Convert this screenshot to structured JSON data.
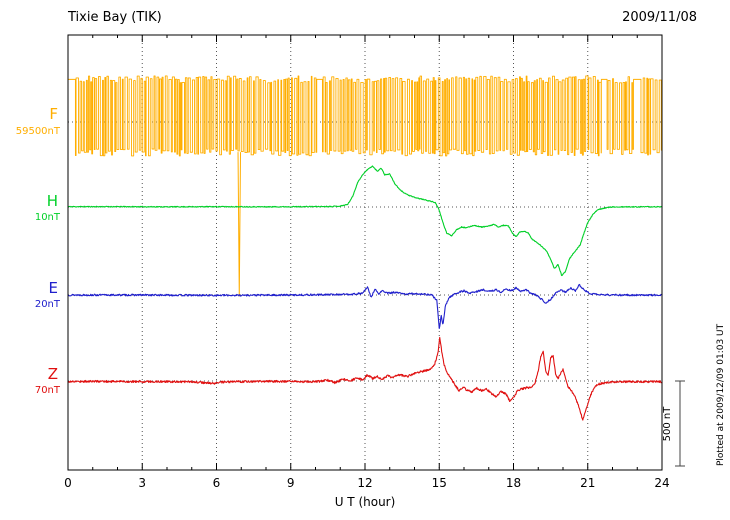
{
  "header": {
    "station": "Tixie Bay (TIK)",
    "date": "2009/11/08"
  },
  "axis": {
    "xlabel": "U T (hour)",
    "xrange": [
      0,
      24
    ],
    "xticks": [
      0,
      3,
      6,
      9,
      12,
      15,
      18,
      21,
      24
    ],
    "minor_step_hours": 1,
    "grid": "dotted-vertical-at-major-ticks-and-dotted-baseline-per-channel"
  },
  "scalebar": {
    "label": "500 nT",
    "nT": 500
  },
  "footer": {
    "plotted_at": "Plotted at 2009/12/09 01:03 UT"
  },
  "channels": [
    {
      "label": "F",
      "baseline_label": "59500nT",
      "color": "#ffae00"
    },
    {
      "label": "H",
      "baseline_label": "10nT",
      "color": "#00d028"
    },
    {
      "label": "E",
      "baseline_label": "20nT",
      "color": "#2020cc"
    },
    {
      "label": "Z",
      "baseline_label": "70nT",
      "color": "#e01010"
    }
  ],
  "chart_data": {
    "type": "line",
    "title": "Tixie Bay (TIK) magnetogram",
    "subtitle": "2009/11/08",
    "xlabel": "U T (hour)",
    "x_range_hours": [
      0,
      24
    ],
    "scale_bar_nT": 500,
    "legend_position": "left-channel-labels",
    "series": [
      {
        "name": "F",
        "baseline_label": "59500nT",
        "type": "square_wave",
        "high_nT": 245,
        "low_nT": -175,
        "jitter_nT": 20,
        "dwell_hours_min": 0.025,
        "dwell_hours_max": 0.1,
        "flat_segments": [
          [
            0,
            0.3
          ],
          [
            10.05,
            10.28
          ],
          [
            21.55,
            21.78
          ],
          [
            22.85,
            23.15
          ]
        ],
        "spike": {
          "hour": 6.92,
          "nT": -1000,
          "width_hours": 0.05
        },
        "seed": 7
      },
      {
        "name": "H",
        "baseline_label": "10nT",
        "type": "keypoints",
        "noise_nT": 2.5,
        "seed": 11,
        "points": [
          [
            0,
            2
          ],
          [
            2,
            2
          ],
          [
            4,
            1
          ],
          [
            6,
            2
          ],
          [
            8,
            1
          ],
          [
            9.5,
            2
          ],
          [
            10.5,
            3
          ],
          [
            11,
            5
          ],
          [
            11.3,
            15
          ],
          [
            11.5,
            60
          ],
          [
            11.7,
            140
          ],
          [
            11.9,
            185
          ],
          [
            12.1,
            215
          ],
          [
            12.3,
            235
          ],
          [
            12.5,
            205
          ],
          [
            12.65,
            225
          ],
          [
            12.8,
            185
          ],
          [
            13,
            190
          ],
          [
            13.2,
            135
          ],
          [
            13.4,
            100
          ],
          [
            13.6,
            80
          ],
          [
            13.8,
            65
          ],
          [
            14,
            55
          ],
          [
            14.3,
            45
          ],
          [
            14.6,
            35
          ],
          [
            14.85,
            25
          ],
          [
            15,
            -20
          ],
          [
            15.15,
            -90
          ],
          [
            15.3,
            -150
          ],
          [
            15.5,
            -165
          ],
          [
            15.7,
            -130
          ],
          [
            15.9,
            -115
          ],
          [
            16.1,
            -120
          ],
          [
            16.4,
            -105
          ],
          [
            16.7,
            -115
          ],
          [
            17,
            -110
          ],
          [
            17.2,
            -100
          ],
          [
            17.4,
            -115
          ],
          [
            17.6,
            -105
          ],
          [
            17.8,
            -110
          ],
          [
            17.95,
            -150
          ],
          [
            18.1,
            -170
          ],
          [
            18.25,
            -145
          ],
          [
            18.45,
            -140
          ],
          [
            18.6,
            -150
          ],
          [
            18.75,
            -185
          ],
          [
            18.9,
            -200
          ],
          [
            19.05,
            -215
          ],
          [
            19.2,
            -235
          ],
          [
            19.35,
            -255
          ],
          [
            19.5,
            -300
          ],
          [
            19.65,
            -355
          ],
          [
            19.8,
            -330
          ],
          [
            19.95,
            -395
          ],
          [
            20.1,
            -370
          ],
          [
            20.25,
            -300
          ],
          [
            20.4,
            -270
          ],
          [
            20.55,
            -245
          ],
          [
            20.7,
            -215
          ],
          [
            20.85,
            -150
          ],
          [
            21,
            -90
          ],
          [
            21.2,
            -45
          ],
          [
            21.4,
            -15
          ],
          [
            21.7,
            -5
          ],
          [
            22,
            0
          ],
          [
            23,
            1
          ],
          [
            24,
            1
          ]
        ]
      },
      {
        "name": "E",
        "baseline_label": "20nT",
        "type": "keypoints",
        "noise_nT": 5,
        "seed": 13,
        "points": [
          [
            0,
            0
          ],
          [
            3,
            0
          ],
          [
            6,
            -2
          ],
          [
            9,
            0
          ],
          [
            10.5,
            2
          ],
          [
            11.5,
            5
          ],
          [
            11.9,
            10
          ],
          [
            12.1,
            45
          ],
          [
            12.25,
            -15
          ],
          [
            12.4,
            35
          ],
          [
            12.55,
            5
          ],
          [
            12.7,
            25
          ],
          [
            12.9,
            10
          ],
          [
            13.2,
            15
          ],
          [
            13.6,
            5
          ],
          [
            14,
            8
          ],
          [
            14.4,
            5
          ],
          [
            14.7,
            0
          ],
          [
            14.9,
            -30
          ],
          [
            15,
            -195
          ],
          [
            15.08,
            -120
          ],
          [
            15.15,
            -175
          ],
          [
            15.25,
            -60
          ],
          [
            15.4,
            -15
          ],
          [
            15.6,
            5
          ],
          [
            15.8,
            15
          ],
          [
            16,
            25
          ],
          [
            16.2,
            10
          ],
          [
            16.5,
            20
          ],
          [
            16.8,
            30
          ],
          [
            17,
            20
          ],
          [
            17.3,
            30
          ],
          [
            17.5,
            15
          ],
          [
            17.7,
            35
          ],
          [
            17.9,
            25
          ],
          [
            18.1,
            40
          ],
          [
            18.3,
            20
          ],
          [
            18.5,
            30
          ],
          [
            18.7,
            10
          ],
          [
            18.9,
            0
          ],
          [
            19.1,
            -20
          ],
          [
            19.3,
            -45
          ],
          [
            19.5,
            -25
          ],
          [
            19.7,
            10
          ],
          [
            19.9,
            30
          ],
          [
            20.1,
            15
          ],
          [
            20.3,
            40
          ],
          [
            20.5,
            25
          ],
          [
            20.65,
            60
          ],
          [
            20.8,
            35
          ],
          [
            21,
            15
          ],
          [
            21.2,
            5
          ],
          [
            21.5,
            2
          ],
          [
            22,
            0
          ],
          [
            24,
            0
          ]
        ]
      },
      {
        "name": "Z",
        "baseline_label": "70nT",
        "type": "keypoints",
        "noise_nT": 6,
        "seed": 17,
        "points": [
          [
            0,
            -3
          ],
          [
            1,
            -2
          ],
          [
            3,
            -3
          ],
          [
            5,
            -4
          ],
          [
            5.9,
            -15
          ],
          [
            6.1,
            -8
          ],
          [
            7,
            -3
          ],
          [
            8,
            -2
          ],
          [
            9,
            -3
          ],
          [
            10,
            -5
          ],
          [
            10.5,
            5
          ],
          [
            10.8,
            -10
          ],
          [
            11.1,
            10
          ],
          [
            11.4,
            0
          ],
          [
            11.7,
            20
          ],
          [
            11.9,
            5
          ],
          [
            12.1,
            35
          ],
          [
            12.3,
            15
          ],
          [
            12.5,
            25
          ],
          [
            12.7,
            10
          ],
          [
            12.9,
            30
          ],
          [
            13.1,
            20
          ],
          [
            13.4,
            35
          ],
          [
            13.7,
            25
          ],
          [
            14,
            45
          ],
          [
            14.3,
            55
          ],
          [
            14.6,
            65
          ],
          [
            14.8,
            90
          ],
          [
            14.95,
            160
          ],
          [
            15.02,
            255
          ],
          [
            15.1,
            170
          ],
          [
            15.2,
            90
          ],
          [
            15.35,
            40
          ],
          [
            15.5,
            10
          ],
          [
            15.65,
            -25
          ],
          [
            15.8,
            -55
          ],
          [
            15.95,
            -35
          ],
          [
            16.1,
            -50
          ],
          [
            16.3,
            -65
          ],
          [
            16.5,
            -40
          ],
          [
            16.7,
            -55
          ],
          [
            16.9,
            -45
          ],
          [
            17.1,
            -70
          ],
          [
            17.3,
            -90
          ],
          [
            17.5,
            -60
          ],
          [
            17.7,
            -75
          ],
          [
            17.85,
            -115
          ],
          [
            18,
            -95
          ],
          [
            18.15,
            -60
          ],
          [
            18.3,
            -45
          ],
          [
            18.5,
            -40
          ],
          [
            18.7,
            -35
          ],
          [
            18.85,
            -20
          ],
          [
            19,
            60
          ],
          [
            19.1,
            140
          ],
          [
            19.2,
            170
          ],
          [
            19.3,
            60
          ],
          [
            19.4,
            30
          ],
          [
            19.5,
            130
          ],
          [
            19.6,
            150
          ],
          [
            19.7,
            40
          ],
          [
            19.8,
            15
          ],
          [
            19.9,
            45
          ],
          [
            20,
            65
          ],
          [
            20.1,
            20
          ],
          [
            20.2,
            -30
          ],
          [
            20.35,
            -60
          ],
          [
            20.5,
            -95
          ],
          [
            20.65,
            -150
          ],
          [
            20.8,
            -225
          ],
          [
            20.9,
            -180
          ],
          [
            21,
            -130
          ],
          [
            21.15,
            -70
          ],
          [
            21.3,
            -30
          ],
          [
            21.5,
            -15
          ],
          [
            21.8,
            -8
          ],
          [
            22.2,
            -5
          ],
          [
            23,
            -4
          ],
          [
            24,
            -4
          ]
        ]
      }
    ]
  }
}
